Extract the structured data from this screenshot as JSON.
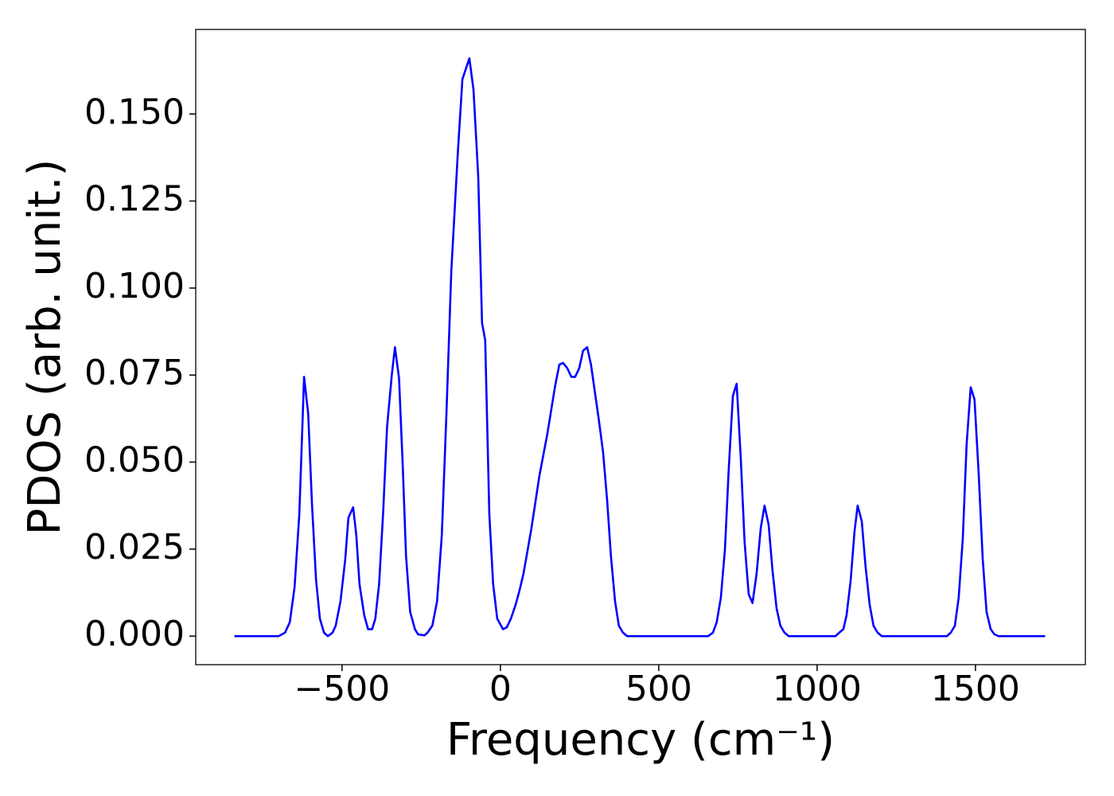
{
  "chart_data": {
    "type": "line",
    "x_label": "Frequency (cm⁻¹)",
    "y_label": "PDOS (arb. unit.)",
    "xlim": [
      -962,
      1847
    ],
    "ylim": [
      -0.0082,
      0.1743
    ],
    "xticks": [
      {
        "value": -500,
        "label": "−500"
      },
      0,
      500,
      1000,
      1500
    ],
    "yticks": [
      {
        "value": 0,
        "label": "0.000"
      },
      {
        "value": 0.025,
        "label": "0.025"
      },
      {
        "value": 0.05,
        "label": "0.050"
      },
      {
        "value": 0.075,
        "label": "0.075"
      },
      {
        "value": 0.1,
        "label": "0.100"
      },
      {
        "value": 0.125,
        "label": "0.125"
      },
      {
        "value": 0.15,
        "label": "0.150"
      }
    ],
    "grid": false,
    "series": [
      {
        "color": "#0000ff",
        "x": [
          -840,
          -700,
          -680,
          -665,
          -650,
          -635,
          -625,
          -620,
          -607,
          -595,
          -582,
          -570,
          -557,
          -545,
          -530,
          -520,
          -505,
          -490,
          -480,
          -465,
          -455,
          -445,
          -430,
          -418,
          -405,
          -395,
          -383,
          -370,
          -358,
          -343,
          -333,
          -320,
          -308,
          -298,
          -285,
          -270,
          -260,
          -240,
          -230,
          -215,
          -200,
          -185,
          -170,
          -155,
          -135,
          -120,
          -98,
          -85,
          -70,
          -58,
          -48,
          -35,
          -23,
          -10,
          8,
          20,
          33,
          48,
          60,
          73,
          98,
          123,
          148,
          173,
          186,
          198,
          211,
          224,
          236,
          249,
          261,
          274,
          286,
          311,
          324,
          337,
          349,
          362,
          374,
          387,
          400,
          656,
          671,
          683,
          696,
          709,
          721,
          734,
          746,
          759,
          771,
          784,
          796,
          809,
          822,
          834,
          847,
          859,
          872,
          884,
          897,
          910,
          1058,
          1070,
          1083,
          1093,
          1106,
          1118,
          1128,
          1141,
          1153,
          1166,
          1178,
          1191,
          1204,
          1410,
          1422,
          1435,
          1447,
          1460,
          1472,
          1485,
          1497,
          1510,
          1523,
          1535,
          1548,
          1560,
          1573,
          1720
        ],
        "values": [
          0,
          0,
          0.001,
          0.004,
          0.014,
          0.035,
          0.061,
          0.0745,
          0.064,
          0.038,
          0.016,
          0.005,
          0.001,
          0,
          0.001,
          0.003,
          0.01,
          0.022,
          0.034,
          0.037,
          0.029,
          0.015,
          0.006,
          0.002,
          0.002,
          0.005,
          0.015,
          0.036,
          0.06,
          0.075,
          0.083,
          0.074,
          0.048,
          0.023,
          0.007,
          0.002,
          0.0005,
          0.0002,
          0.001,
          0.003,
          0.01,
          0.029,
          0.065,
          0.105,
          0.138,
          0.16,
          0.166,
          0.157,
          0.132,
          0.09,
          0.085,
          0.035,
          0.015,
          0.005,
          0.002,
          0.0025,
          0.005,
          0.009,
          0.013,
          0.018,
          0.031,
          0.046,
          0.058,
          0.072,
          0.078,
          0.0785,
          0.077,
          0.0745,
          0.0745,
          0.077,
          0.082,
          0.083,
          0.078,
          0.062,
          0.053,
          0.039,
          0.023,
          0.01,
          0.003,
          0.001,
          0,
          0,
          0.001,
          0.004,
          0.011,
          0.025,
          0.048,
          0.069,
          0.0725,
          0.051,
          0.027,
          0.012,
          0.0095,
          0.018,
          0.031,
          0.0375,
          0.032,
          0.019,
          0.008,
          0.003,
          0.001,
          0,
          0,
          0.001,
          0.002,
          0.006,
          0.016,
          0.03,
          0.0375,
          0.033,
          0.02,
          0.009,
          0.003,
          0.001,
          0,
          0,
          0.001,
          0.003,
          0.011,
          0.028,
          0.055,
          0.0715,
          0.068,
          0.047,
          0.022,
          0.007,
          0.002,
          0.0005,
          0,
          0
        ]
      }
    ]
  }
}
